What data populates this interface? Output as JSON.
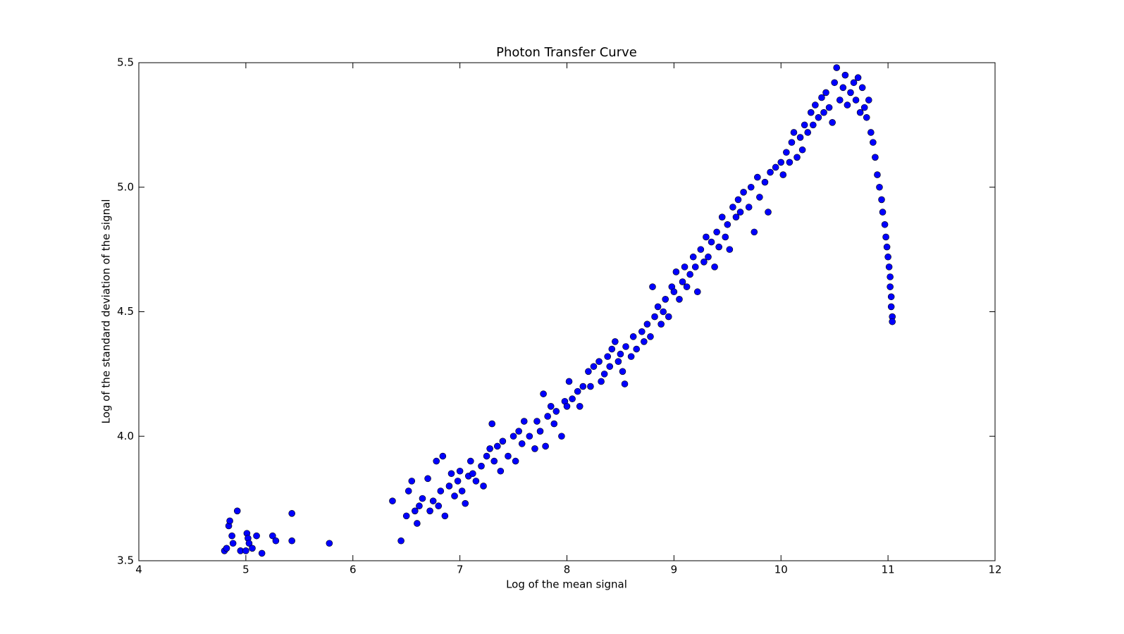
{
  "chart_data": {
    "type": "scatter",
    "title": "Photon Transfer Curve",
    "x_label": "Log of the mean signal",
    "y_label": "Log of the standard deviation of the signal",
    "color": "#0000ff",
    "x": [
      4.8,
      4.82,
      4.84,
      4.85,
      4.87,
      4.88,
      4.92,
      4.95,
      5.0,
      5.01,
      5.02,
      5.03,
      5.06,
      5.1,
      5.15,
      5.25,
      5.28,
      5.43,
      5.43,
      5.78,
      6.37,
      6.45,
      6.5,
      6.52,
      6.55,
      6.58,
      6.6,
      6.62,
      6.65,
      6.7,
      6.72,
      6.75,
      6.78,
      6.8,
      6.82,
      6.84,
      6.86,
      6.9,
      6.92,
      6.95,
      6.98,
      7.0,
      7.02,
      7.05,
      7.08,
      7.1,
      7.12,
      7.15,
      7.2,
      7.22,
      7.25,
      7.28,
      7.3,
      7.32,
      7.35,
      7.38,
      7.4,
      7.45,
      7.5,
      7.52,
      7.55,
      7.58,
      7.6,
      7.65,
      7.7,
      7.72,
      7.75,
      7.78,
      7.8,
      7.82,
      7.85,
      7.88,
      7.9,
      7.95,
      7.98,
      8.0,
      8.02,
      8.05,
      8.1,
      8.12,
      8.15,
      8.2,
      8.22,
      8.25,
      8.3,
      8.32,
      8.35,
      8.38,
      8.4,
      8.42,
      8.45,
      8.48,
      8.5,
      8.52,
      8.54,
      8.55,
      8.6,
      8.62,
      8.65,
      8.7,
      8.72,
      8.75,
      8.78,
      8.8,
      8.82,
      8.85,
      8.88,
      8.9,
      8.92,
      8.95,
      8.98,
      9.0,
      9.02,
      9.05,
      9.08,
      9.1,
      9.12,
      9.15,
      9.18,
      9.2,
      9.22,
      9.25,
      9.28,
      9.3,
      9.32,
      9.35,
      9.38,
      9.4,
      9.42,
      9.45,
      9.48,
      9.5,
      9.52,
      9.55,
      9.58,
      9.6,
      9.62,
      9.65,
      9.7,
      9.72,
      9.75,
      9.78,
      9.8,
      9.85,
      9.88,
      9.9,
      9.95,
      10.0,
      10.02,
      10.05,
      10.08,
      10.1,
      10.12,
      10.15,
      10.18,
      10.2,
      10.22,
      10.25,
      10.28,
      10.3,
      10.32,
      10.35,
      10.38,
      10.4,
      10.42,
      10.45,
      10.48,
      10.5,
      10.52,
      10.55,
      10.58,
      10.6,
      10.62,
      10.65,
      10.68,
      10.7,
      10.72,
      10.74,
      10.76,
      10.78,
      10.8,
      10.82,
      10.84,
      10.86,
      10.88,
      10.9,
      10.92,
      10.94,
      10.95,
      10.97,
      10.98,
      10.99,
      11.0,
      11.01,
      11.02,
      11.02,
      11.03,
      11.03,
      11.04,
      11.04
    ],
    "values": [
      3.54,
      3.55,
      3.64,
      3.66,
      3.6,
      3.57,
      3.7,
      3.54,
      3.54,
      3.61,
      3.59,
      3.57,
      3.55,
      3.6,
      3.53,
      3.6,
      3.58,
      3.69,
      3.58,
      3.57,
      3.74,
      3.58,
      3.68,
      3.78,
      3.82,
      3.7,
      3.65,
      3.72,
      3.75,
      3.83,
      3.7,
      3.74,
      3.9,
      3.72,
      3.78,
      3.92,
      3.68,
      3.8,
      3.85,
      3.76,
      3.82,
      3.86,
      3.78,
      3.73,
      3.84,
      3.9,
      3.85,
      3.82,
      3.88,
      3.8,
      3.92,
      3.95,
      4.05,
      3.9,
      3.96,
      3.86,
      3.98,
      3.92,
      4.0,
      3.9,
      4.02,
      3.97,
      4.06,
      4.0,
      3.95,
      4.06,
      4.02,
      4.17,
      3.96,
      4.08,
      4.12,
      4.05,
      4.1,
      4.0,
      4.14,
      4.12,
      4.22,
      4.15,
      4.18,
      4.12,
      4.2,
      4.26,
      4.2,
      4.28,
      4.3,
      4.22,
      4.25,
      4.32,
      4.28,
      4.35,
      4.38,
      4.3,
      4.33,
      4.26,
      4.21,
      4.36,
      4.32,
      4.4,
      4.35,
      4.42,
      4.38,
      4.45,
      4.4,
      4.6,
      4.48,
      4.52,
      4.45,
      4.5,
      4.55,
      4.48,
      4.6,
      4.58,
      4.66,
      4.55,
      4.62,
      4.68,
      4.6,
      4.65,
      4.72,
      4.68,
      4.58,
      4.75,
      4.7,
      4.8,
      4.72,
      4.78,
      4.68,
      4.82,
      4.76,
      4.88,
      4.8,
      4.85,
      4.75,
      4.92,
      4.88,
      4.95,
      4.9,
      4.98,
      4.92,
      5.0,
      4.82,
      5.04,
      4.96,
      5.02,
      4.9,
      5.06,
      5.08,
      5.1,
      5.05,
      5.14,
      5.1,
      5.18,
      5.22,
      5.12,
      5.2,
      5.15,
      5.25,
      5.22,
      5.3,
      5.25,
      5.33,
      5.28,
      5.36,
      5.3,
      5.38,
      5.32,
      5.26,
      5.42,
      5.48,
      5.35,
      5.4,
      5.45,
      5.33,
      5.38,
      5.42,
      5.35,
      5.44,
      5.3,
      5.4,
      5.32,
      5.28,
      5.35,
      5.22,
      5.18,
      5.12,
      5.05,
      5.0,
      4.95,
      4.9,
      4.85,
      4.8,
      4.76,
      4.72,
      4.68,
      4.64,
      4.6,
      4.56,
      4.52,
      4.48,
      4.46
    ],
    "xlim": [
      4,
      12
    ],
    "xticks": [
      4,
      5,
      6,
      7,
      8,
      9,
      10,
      11,
      12
    ],
    "ylim": [
      3.5,
      5.5
    ],
    "yticks": [
      3.5,
      {
        "value": 4,
        "label": "4.0"
      },
      4.5,
      {
        "value": 5,
        "label": "5.0"
      },
      5.5
    ]
  }
}
